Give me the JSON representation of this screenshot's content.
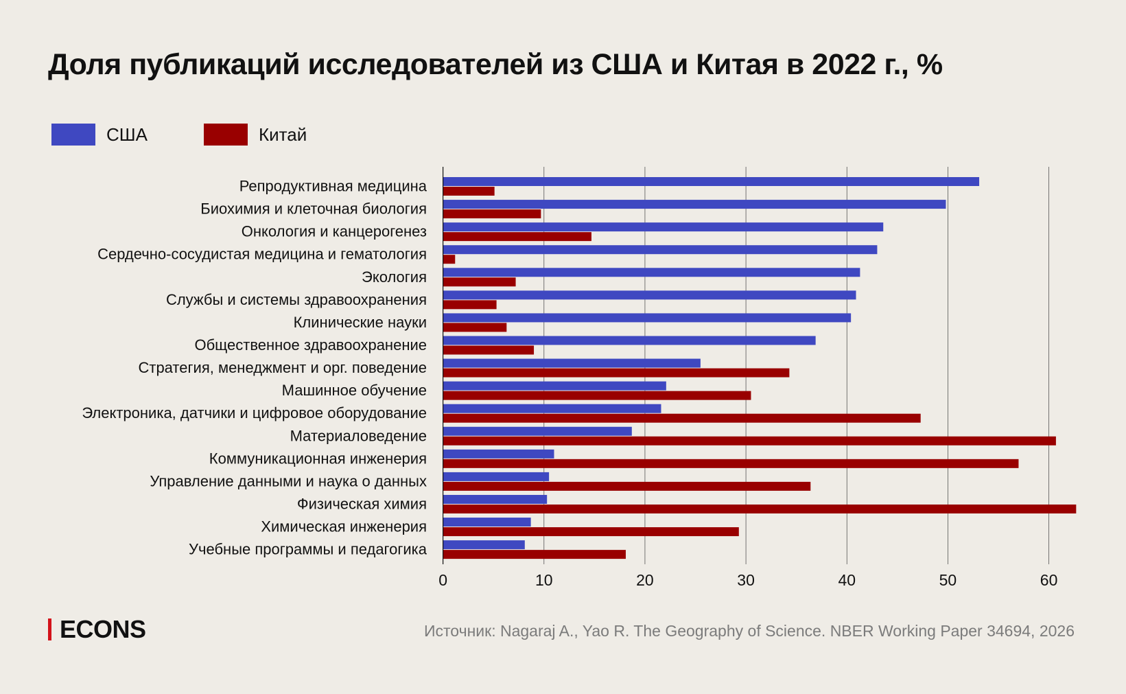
{
  "chart_data": {
    "type": "bar",
    "orientation": "horizontal",
    "title": "Доля публикаций исследователей из США и Китая в 2022 г., %",
    "categories": [
      "Репродуктивная медицина",
      "Биохимия и клеточная биология",
      "Онкология и канцерогенез",
      "Сердечно-сосудистая медицина и гематология",
      "Экология",
      "Службы и системы здравоохранения",
      "Клинические науки",
      "Общественное здравоохранение",
      "Стратегия, менеджмент и орг. поведение",
      "Машинное обучение",
      "Электроника, датчики и цифровое оборудование",
      "Материаловедение",
      "Коммуникационная инженерия",
      "Управление данными и наука о данных",
      "Физическая химия",
      "Химическая инженерия",
      "Учебные программы и педагогика"
    ],
    "series": [
      {
        "name": "США",
        "color": "#3f48c1",
        "values": [
          53.1,
          49.8,
          43.6,
          43.0,
          41.3,
          40.9,
          40.4,
          36.9,
          25.5,
          22.1,
          21.6,
          18.7,
          11.0,
          10.5,
          10.3,
          8.7,
          8.1
        ]
      },
      {
        "name": "Китай",
        "color": "#990000",
        "values": [
          5.1,
          9.7,
          14.7,
          1.2,
          7.2,
          5.3,
          6.3,
          9.0,
          34.3,
          30.5,
          47.3,
          60.7,
          57.0,
          36.4,
          62.7,
          29.3,
          18.1
        ]
      }
    ],
    "xlim": [
      0,
      62.7
    ],
    "xticks": [
      0,
      10,
      20,
      30,
      40,
      50,
      60
    ],
    "grid": "vertical",
    "legend": "top-left"
  },
  "logo": "ECONS",
  "source": "Источник: Nagaraj A., Yao R. The Geography of Science. NBER Working Paper 34694, 2026"
}
